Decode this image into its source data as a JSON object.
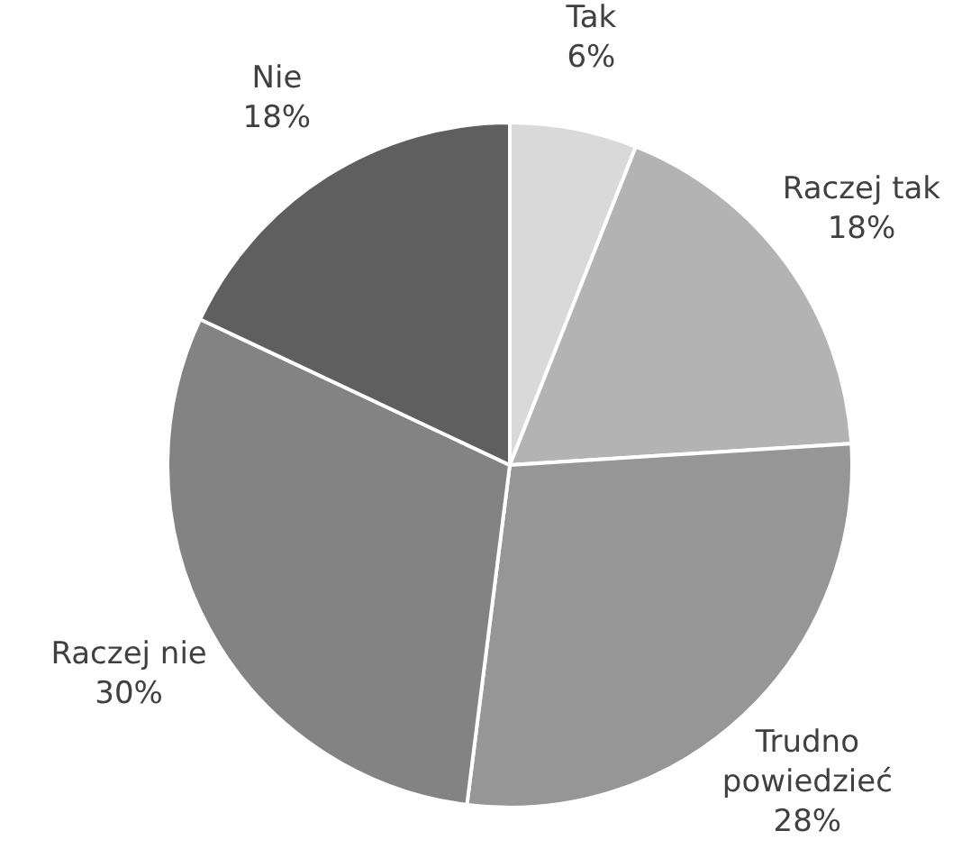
{
  "chart_data": {
    "type": "pie",
    "categories": [
      "Tak",
      "Raczej tak",
      "Trudno powiedzieć",
      "Raczej nie",
      "Nie"
    ],
    "values": [
      6,
      18,
      28,
      30,
      18
    ],
    "value_labels": [
      "6%",
      "18%",
      "28%",
      "30%",
      "18%"
    ],
    "colors": [
      "#d9d9d9",
      "#b3b3b3",
      "#969696",
      "#838383",
      "#5f5f5f"
    ],
    "legend": false
  }
}
